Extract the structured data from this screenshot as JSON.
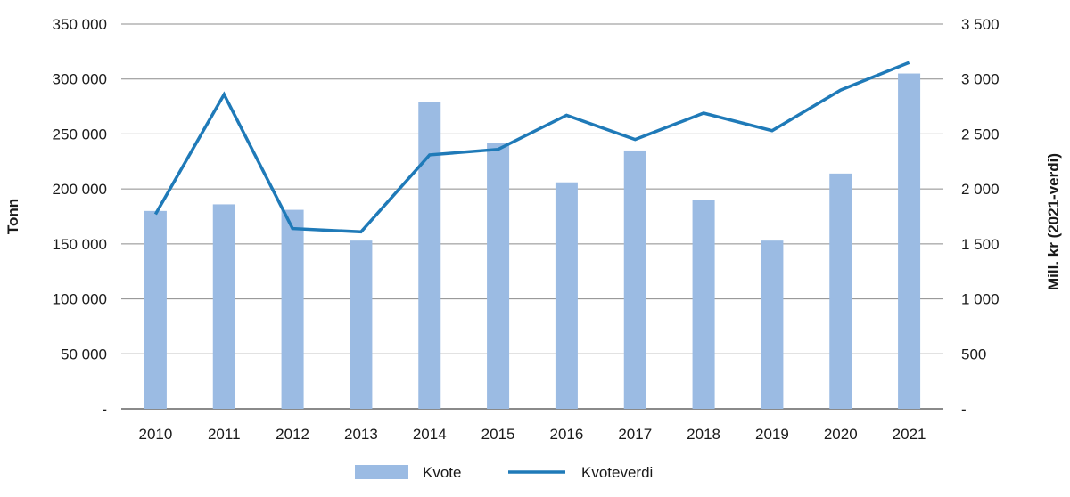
{
  "chart_data": {
    "type": "bar",
    "categories": [
      "2010",
      "2011",
      "2012",
      "2013",
      "2014",
      "2015",
      "2016",
      "2017",
      "2018",
      "2019",
      "2020",
      "2021"
    ],
    "series": [
      {
        "name": "Kvote",
        "type": "bar",
        "axis": "left",
        "color": "#9bbbe3",
        "values": [
          180000,
          186000,
          181000,
          153000,
          279000,
          242000,
          206000,
          235000,
          190000,
          153000,
          214000,
          305000
        ]
      },
      {
        "name": "Kvoteverdi",
        "type": "line",
        "axis": "right",
        "color": "#1f7ab8",
        "values": [
          1770,
          2860,
          1640,
          1610,
          2310,
          2360,
          2670,
          2450,
          2690,
          2530,
          2900,
          3150
        ]
      }
    ],
    "ylabel": "Tonn",
    "y2label": "Mill. kr (2021-verdi)",
    "ylim": [
      0,
      350000
    ],
    "y2lim": [
      0,
      3500
    ],
    "yticks": [
      "-",
      "50 000",
      "100 000",
      "150 000",
      "200 000",
      "250 000",
      "300 000",
      "350 000"
    ],
    "y2ticks": [
      "-",
      "500",
      "1 000",
      "1 500",
      "2 000",
      "2 500",
      "3 000",
      "3 500"
    ],
    "grid": true,
    "legend_position": "bottom-center"
  }
}
